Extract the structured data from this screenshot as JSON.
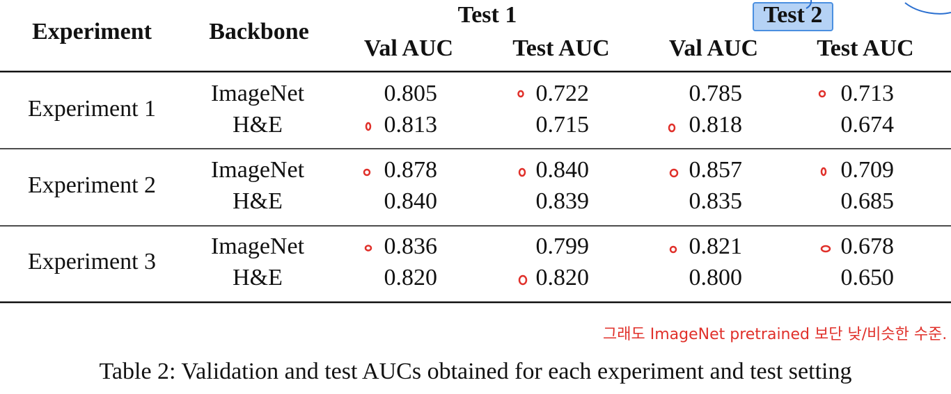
{
  "table": {
    "header": {
      "experiment": "Experiment",
      "backbone": "Backbone",
      "groups": [
        {
          "title": "Test 1",
          "columns": [
            "Val AUC",
            "Test AUC"
          ]
        },
        {
          "title": "Test 2",
          "columns": [
            "Val AUC",
            "Test AUC"
          ]
        }
      ]
    },
    "rows": [
      {
        "experiment": "Experiment 1",
        "entries": [
          {
            "backbone": "ImageNet",
            "values": [
              "0.805",
              "0.722",
              "0.785",
              "0.713"
            ]
          },
          {
            "backbone": "H&E",
            "values": [
              "0.813",
              "0.715",
              "0.818",
              "0.674"
            ]
          }
        ]
      },
      {
        "experiment": "Experiment 2",
        "entries": [
          {
            "backbone": "ImageNet",
            "values": [
              "0.878",
              "0.840",
              "0.857",
              "0.709"
            ]
          },
          {
            "backbone": "H&E",
            "values": [
              "0.840",
              "0.839",
              "0.835",
              "0.685"
            ]
          }
        ]
      },
      {
        "experiment": "Experiment 3",
        "entries": [
          {
            "backbone": "ImageNet",
            "values": [
              "0.836",
              "0.799",
              "0.821",
              "0.678"
            ]
          },
          {
            "backbone": "H&E",
            "values": [
              "0.820",
              "0.820",
              "0.800",
              "0.650"
            ]
          }
        ]
      }
    ]
  },
  "annotation": "그래도 ImageNet pretrained 보단 낮/비슷한 수준.",
  "caption": "Table 2: Validation and test AUCs obtained for each experiment and test setting"
}
